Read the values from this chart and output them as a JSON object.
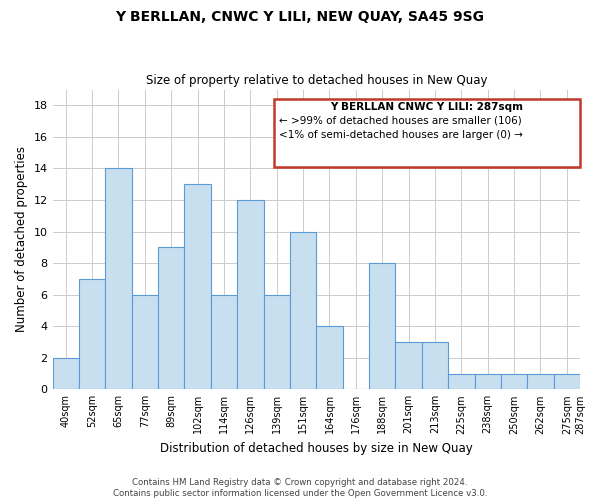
{
  "title": "Y BERLLAN, CNWC Y LILI, NEW QUAY, SA45 9SG",
  "subtitle": "Size of property relative to detached houses in New Quay",
  "xlabel": "Distribution of detached houses by size in New Quay",
  "ylabel": "Number of detached properties",
  "bar_color": "#c8dff0",
  "bar_edge_color": "#5b9bd5",
  "bin_labels": [
    "40sqm",
    "52sqm",
    "65sqm",
    "77sqm",
    "89sqm",
    "102sqm",
    "114sqm",
    "126sqm",
    "139sqm",
    "151sqm",
    "164sqm",
    "176sqm",
    "188sqm",
    "201sqm",
    "213sqm",
    "225sqm",
    "238sqm",
    "250sqm",
    "262sqm",
    "275sqm",
    "287sqm"
  ],
  "bar_heights": [
    2,
    7,
    14,
    6,
    9,
    13,
    6,
    12,
    6,
    10,
    4,
    0,
    8,
    3,
    3,
    1,
    1,
    1,
    1,
    1
  ],
  "ylim": [
    0,
    19
  ],
  "yticks": [
    0,
    2,
    4,
    6,
    8,
    10,
    12,
    14,
    16,
    18
  ],
  "legend_title": "Y BERLLAN CNWC Y LILI: 287sqm",
  "legend_line1": "← >99% of detached houses are smaller (106)",
  "legend_line2": "<1% of semi-detached houses are larger (0) →",
  "highlight_color": "#c0392b",
  "footer1": "Contains HM Land Registry data © Crown copyright and database right 2024.",
  "footer2": "Contains public sector information licensed under the Open Government Licence v3.0.",
  "grid_color": "#cccccc",
  "background_color": "#ffffff"
}
